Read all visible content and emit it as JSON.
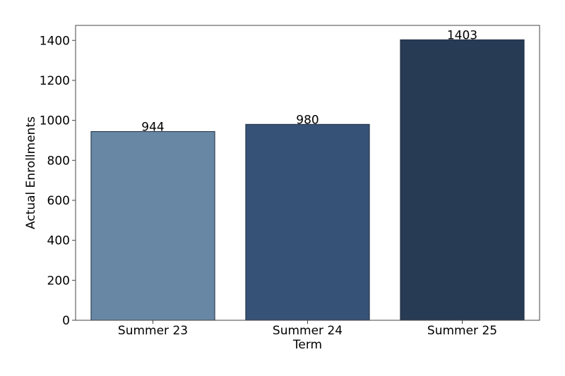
{
  "chart_data": {
    "type": "bar",
    "categories": [
      "Summer 23",
      "Summer 24",
      "Summer 25"
    ],
    "values": [
      944,
      980,
      1403
    ],
    "data_labels": [
      "944",
      "980",
      "1403"
    ],
    "bar_colors": [
      "#6787a5",
      "#365277",
      "#283b55"
    ],
    "bar_edge_color": "#1f2d40",
    "xlabel": "Term",
    "ylabel": "Actual Enrollments",
    "ylim": [
      0,
      1475
    ],
    "yticks": [
      0,
      200,
      400,
      600,
      800,
      1000,
      1200,
      1400
    ],
    "ytick_labels": [
      "0",
      "200",
      "400",
      "600",
      "800",
      "1000",
      "1200",
      "1400"
    ],
    "grid": false,
    "legend": false
  }
}
